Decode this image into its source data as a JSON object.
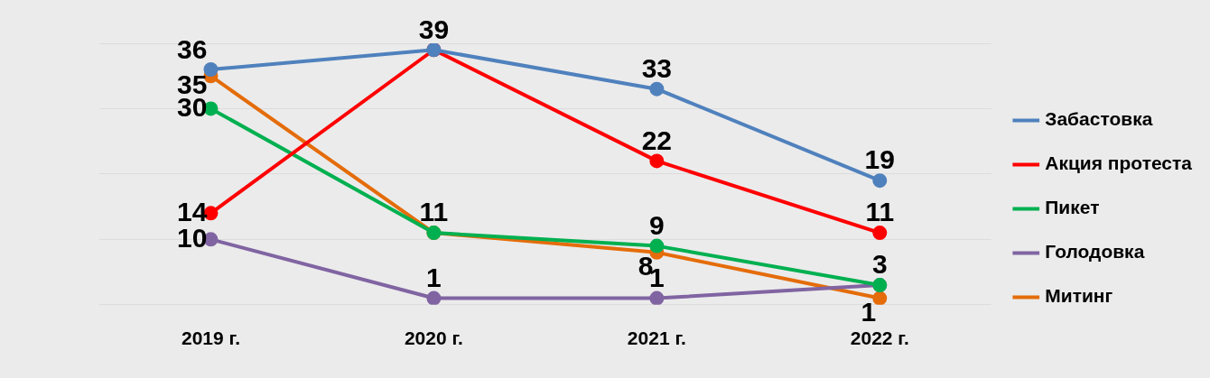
{
  "chart_data": {
    "type": "line",
    "categories": [
      "2019 г.",
      "2020 г.",
      "2021 г.",
      "2022 г."
    ],
    "series": [
      {
        "name": "Забастовка",
        "color": "#4f81bd",
        "values": [
          36,
          39,
          33,
          19
        ],
        "value_labels": [
          "36",
          "39",
          "33",
          "19"
        ]
      },
      {
        "name": "Акция протеста",
        "color": "#ff0000",
        "values": [
          14,
          39,
          22,
          11
        ],
        "value_labels": [
          "14",
          null,
          "22",
          "11"
        ]
      },
      {
        "name": "Пикет",
        "color": "#00b050",
        "values": [
          30,
          11,
          9,
          3
        ],
        "value_labels": [
          "30",
          "11",
          "9",
          "3"
        ]
      },
      {
        "name": "Голодовка",
        "color": "#8064a2",
        "values": [
          10,
          1,
          1,
          3
        ],
        "value_labels": [
          "10",
          "1",
          "1",
          null
        ]
      },
      {
        "name": "Митинг",
        "color": "#e46c0a",
        "values": [
          35,
          11,
          8,
          1
        ],
        "value_labels": [
          "35",
          null,
          "8",
          "1"
        ]
      }
    ],
    "ylim": [
      0,
      40
    ],
    "yticks": [
      {
        "value": 0,
        "label": null
      },
      {
        "value": 10,
        "label": null
      },
      {
        "value": 20,
        "label": null
      },
      {
        "value": 30,
        "label": null
      },
      {
        "value": 40,
        "label": null
      }
    ],
    "tick_labels": "x",
    "grid": "y",
    "legend": "right",
    "marker": "circle",
    "line_style": "solid"
  }
}
